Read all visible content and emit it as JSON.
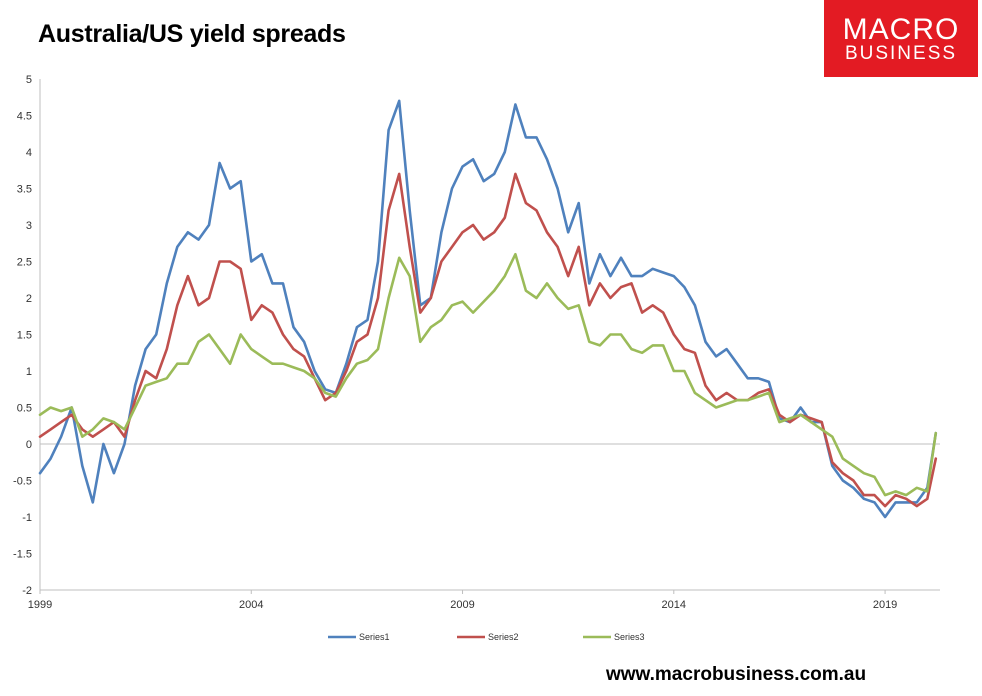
{
  "title": "Australia/US yield spreads",
  "logo": {
    "line1": "MACRO",
    "line2": "BUSINESS"
  },
  "website": "www.macrobusiness.com.au",
  "colors": {
    "series1": "#4f81bd",
    "series2": "#c0504d",
    "series3": "#9bbb59",
    "logo_bg": "#e31b23",
    "zero_line": "#bfbfbf"
  },
  "chart_data": {
    "type": "line",
    "title": "Australia/US yield spreads",
    "xlabel": "",
    "ylabel": "",
    "xlim": [
      1999.0,
      2020.3
    ],
    "ylim": [
      -2,
      5
    ],
    "yticks": [
      "5",
      "4.5",
      "4",
      "3.5",
      "3",
      "2.5",
      "2",
      "1.5",
      "1",
      "0.5",
      "0",
      "-0.5",
      "-1",
      "-1.5",
      "-2"
    ],
    "xticks": [
      "1999",
      "2004",
      "2009",
      "2014",
      "2019"
    ],
    "grid": false,
    "legend_position": "bottom",
    "series": [
      {
        "name": "Series1",
        "x": [
          1999.0,
          1999.25,
          1999.5,
          1999.75,
          2000.0,
          2000.25,
          2000.5,
          2000.75,
          2001.0,
          2001.25,
          2001.5,
          2001.75,
          2002.0,
          2002.25,
          2002.5,
          2002.75,
          2003.0,
          2003.25,
          2003.5,
          2003.75,
          2004.0,
          2004.25,
          2004.5,
          2004.75,
          2005.0,
          2005.25,
          2005.5,
          2005.75,
          2006.0,
          2006.25,
          2006.5,
          2006.75,
          2007.0,
          2007.25,
          2007.5,
          2007.75,
          2008.0,
          2008.25,
          2008.5,
          2008.75,
          2009.0,
          2009.25,
          2009.5,
          2009.75,
          2010.0,
          2010.25,
          2010.5,
          2010.75,
          2011.0,
          2011.25,
          2011.5,
          2011.75,
          2012.0,
          2012.25,
          2012.5,
          2012.75,
          2013.0,
          2013.25,
          2013.5,
          2013.75,
          2014.0,
          2014.25,
          2014.5,
          2014.75,
          2015.0,
          2015.25,
          2015.5,
          2015.75,
          2016.0,
          2016.25,
          2016.5,
          2016.75,
          2017.0,
          2017.25,
          2017.5,
          2017.75,
          2018.0,
          2018.25,
          2018.5,
          2018.75,
          2019.0,
          2019.25,
          2019.5,
          2019.75,
          2020.0,
          2020.2
        ],
        "values": [
          -0.4,
          -0.2,
          0.1,
          0.5,
          -0.3,
          -0.8,
          0.0,
          -0.4,
          0.0,
          0.8,
          1.3,
          1.5,
          2.2,
          2.7,
          2.9,
          2.8,
          3.0,
          3.85,
          3.5,
          3.6,
          2.5,
          2.6,
          2.2,
          2.2,
          1.6,
          1.4,
          1.0,
          0.75,
          0.7,
          1.1,
          1.6,
          1.7,
          2.5,
          4.3,
          4.7,
          3.2,
          1.9,
          2.0,
          2.9,
          3.5,
          3.8,
          3.9,
          3.6,
          3.7,
          4.0,
          4.65,
          4.2,
          4.2,
          3.9,
          3.5,
          2.9,
          3.3,
          2.2,
          2.6,
          2.3,
          2.55,
          2.3,
          2.3,
          2.4,
          2.35,
          2.3,
          2.15,
          1.9,
          1.4,
          1.2,
          1.3,
          1.1,
          0.9,
          0.9,
          0.85,
          0.35,
          0.3,
          0.5,
          0.3,
          0.3,
          -0.3,
          -0.5,
          -0.6,
          -0.75,
          -0.8,
          -1.0,
          -0.8,
          -0.8,
          -0.8,
          -0.6,
          0.15
        ]
      },
      {
        "name": "Series2",
        "x": [
          1999.0,
          1999.25,
          1999.5,
          1999.75,
          2000.0,
          2000.25,
          2000.5,
          2000.75,
          2001.0,
          2001.25,
          2001.5,
          2001.75,
          2002.0,
          2002.25,
          2002.5,
          2002.75,
          2003.0,
          2003.25,
          2003.5,
          2003.75,
          2004.0,
          2004.25,
          2004.5,
          2004.75,
          2005.0,
          2005.25,
          2005.5,
          2005.75,
          2006.0,
          2006.25,
          2006.5,
          2006.75,
          2007.0,
          2007.25,
          2007.5,
          2007.75,
          2008.0,
          2008.25,
          2008.5,
          2008.75,
          2009.0,
          2009.25,
          2009.5,
          2009.75,
          2010.0,
          2010.25,
          2010.5,
          2010.75,
          2011.0,
          2011.25,
          2011.5,
          2011.75,
          2012.0,
          2012.25,
          2012.5,
          2012.75,
          2013.0,
          2013.25,
          2013.5,
          2013.75,
          2014.0,
          2014.25,
          2014.5,
          2014.75,
          2015.0,
          2015.25,
          2015.5,
          2015.75,
          2016.0,
          2016.25,
          2016.5,
          2016.75,
          2017.0,
          2017.25,
          2017.5,
          2017.75,
          2018.0,
          2018.25,
          2018.5,
          2018.75,
          2019.0,
          2019.25,
          2019.5,
          2019.75,
          2020.0,
          2020.2
        ],
        "values": [
          0.1,
          0.2,
          0.3,
          0.4,
          0.2,
          0.1,
          0.2,
          0.3,
          0.1,
          0.6,
          1.0,
          0.9,
          1.3,
          1.9,
          2.3,
          1.9,
          2.0,
          2.5,
          2.5,
          2.4,
          1.7,
          1.9,
          1.8,
          1.5,
          1.3,
          1.2,
          0.9,
          0.6,
          0.7,
          1.0,
          1.4,
          1.5,
          2.0,
          3.2,
          3.7,
          2.7,
          1.8,
          2.0,
          2.5,
          2.7,
          2.9,
          3.0,
          2.8,
          2.9,
          3.1,
          3.7,
          3.3,
          3.2,
          2.9,
          2.7,
          2.3,
          2.7,
          1.9,
          2.2,
          2.0,
          2.15,
          2.2,
          1.8,
          1.9,
          1.8,
          1.5,
          1.3,
          1.25,
          0.8,
          0.6,
          0.7,
          0.6,
          0.6,
          0.7,
          0.75,
          0.4,
          0.3,
          0.4,
          0.35,
          0.3,
          -0.25,
          -0.4,
          -0.5,
          -0.7,
          -0.7,
          -0.85,
          -0.7,
          -0.75,
          -0.85,
          -0.75,
          -0.2
        ]
      },
      {
        "name": "Series3",
        "x": [
          1999.0,
          1999.25,
          1999.5,
          1999.75,
          2000.0,
          2000.25,
          2000.5,
          2000.75,
          2001.0,
          2001.25,
          2001.5,
          2001.75,
          2002.0,
          2002.25,
          2002.5,
          2002.75,
          2003.0,
          2003.25,
          2003.5,
          2003.75,
          2004.0,
          2004.25,
          2004.5,
          2004.75,
          2005.0,
          2005.25,
          2005.5,
          2005.75,
          2006.0,
          2006.25,
          2006.5,
          2006.75,
          2007.0,
          2007.25,
          2007.5,
          2007.75,
          2008.0,
          2008.25,
          2008.5,
          2008.75,
          2009.0,
          2009.25,
          2009.5,
          2009.75,
          2010.0,
          2010.25,
          2010.5,
          2010.75,
          2011.0,
          2011.25,
          2011.5,
          2011.75,
          2012.0,
          2012.25,
          2012.5,
          2012.75,
          2013.0,
          2013.25,
          2013.5,
          2013.75,
          2014.0,
          2014.25,
          2014.5,
          2014.75,
          2015.0,
          2015.25,
          2015.5,
          2015.75,
          2016.0,
          2016.25,
          2016.5,
          2016.75,
          2017.0,
          2017.25,
          2017.5,
          2017.75,
          2018.0,
          2018.25,
          2018.5,
          2018.75,
          2019.0,
          2019.25,
          2019.5,
          2019.75,
          2020.0,
          2020.2
        ],
        "values": [
          0.4,
          0.5,
          0.45,
          0.5,
          0.1,
          0.2,
          0.35,
          0.3,
          0.2,
          0.5,
          0.8,
          0.85,
          0.9,
          1.1,
          1.1,
          1.4,
          1.5,
          1.3,
          1.1,
          1.5,
          1.3,
          1.2,
          1.1,
          1.1,
          1.05,
          1.0,
          0.9,
          0.7,
          0.65,
          0.9,
          1.1,
          1.15,
          1.3,
          2.0,
          2.55,
          2.3,
          1.4,
          1.6,
          1.7,
          1.9,
          1.95,
          1.8,
          1.95,
          2.1,
          2.3,
          2.6,
          2.1,
          2.0,
          2.2,
          2.0,
          1.85,
          1.9,
          1.4,
          1.35,
          1.5,
          1.5,
          1.3,
          1.25,
          1.35,
          1.35,
          1.0,
          1.0,
          0.7,
          0.6,
          0.5,
          0.55,
          0.6,
          0.6,
          0.65,
          0.7,
          0.3,
          0.35,
          0.4,
          0.3,
          0.2,
          0.1,
          -0.2,
          -0.3,
          -0.4,
          -0.45,
          -0.7,
          -0.65,
          -0.7,
          -0.6,
          -0.65,
          0.15
        ]
      }
    ]
  }
}
